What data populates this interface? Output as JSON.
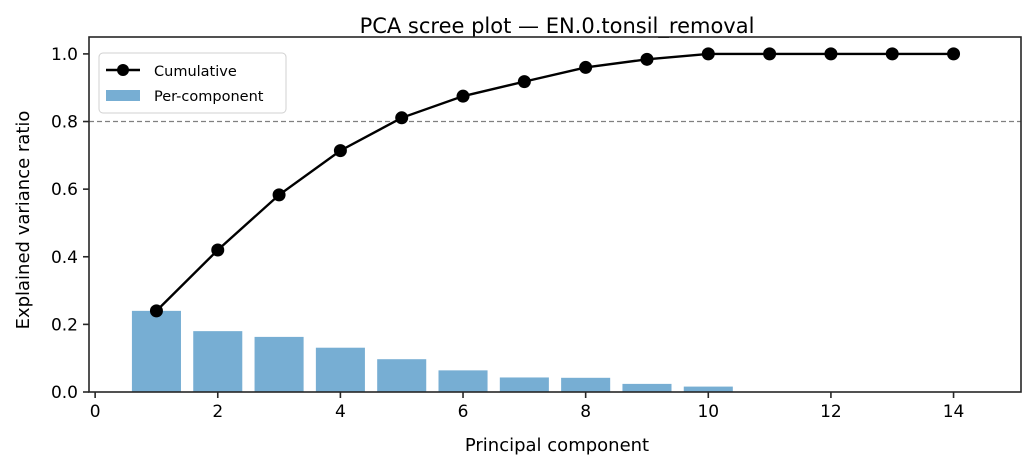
{
  "chart_data": {
    "type": "bar+line",
    "title": "PCA scree plot — EN.0.tonsil_removal",
    "xlabel": "Principal component",
    "ylabel": "Explained variance ratio",
    "xlim": [
      -0.1,
      15.1
    ],
    "ylim": [
      0,
      1.05
    ],
    "xticks": [
      0,
      2,
      4,
      6,
      8,
      10,
      12,
      14
    ],
    "yticks": [
      0.0,
      0.2,
      0.4,
      0.6,
      0.8,
      1.0
    ],
    "xtick_labels": [
      "0",
      "2",
      "4",
      "6",
      "8",
      "10",
      "12",
      "14"
    ],
    "ytick_labels": [
      "0.0",
      "0.2",
      "0.4",
      "0.6",
      "0.8",
      "1.0"
    ],
    "grid": false,
    "legend_position": "upper left",
    "threshold_line": {
      "y": 0.8,
      "style": "dashed",
      "color": "#808080"
    },
    "x": [
      1,
      2,
      3,
      4,
      5,
      6,
      7,
      8,
      9,
      10,
      11,
      12,
      13,
      14
    ],
    "series": [
      {
        "name": "Per-component",
        "type": "bar",
        "color": "#77aed3",
        "values": [
          0.24,
          0.18,
          0.163,
          0.131,
          0.097,
          0.064,
          0.043,
          0.042,
          0.024,
          0.016,
          0.0,
          0.0,
          0.0,
          0.0
        ]
      },
      {
        "name": "Cumulative",
        "type": "line",
        "marker": "circle",
        "color": "#000000",
        "values": [
          0.24,
          0.42,
          0.583,
          0.714,
          0.811,
          0.875,
          0.918,
          0.96,
          0.984,
          1.0,
          1.0,
          1.0,
          1.0,
          1.0
        ]
      }
    ]
  },
  "legend": {
    "items": [
      {
        "label": "Cumulative"
      },
      {
        "label": "Per-component"
      }
    ]
  }
}
